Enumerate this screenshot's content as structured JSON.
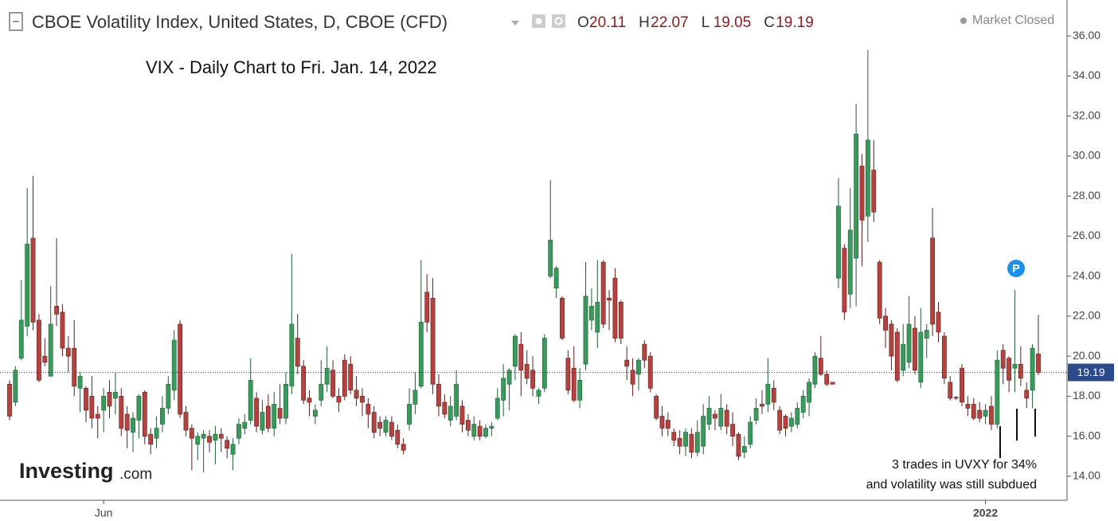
{
  "header": {
    "title": "CBOE Volatility Index, United States, D, CBOE (CFD)",
    "ohlc_letters": [
      "O",
      "H",
      "L",
      "C"
    ],
    "status": "Market Closed"
  },
  "logo": {
    "name": "Investing",
    "suffix": ".com"
  },
  "marker": "P",
  "chart_data": {
    "type": "candlestick",
    "annotation": "VIX - Daily Chart to Fri. Jan. 14, 2022",
    "note": [
      "3 trades in UVXY for 34%",
      "and volatility was still subdued"
    ],
    "up_color": "#3a9a5c",
    "down_color": "#b5423f",
    "price_line_color": "#2b4a8b",
    "ylim": [
      12.8,
      37.6
    ],
    "yticks": [
      {
        "value": 14,
        "label": "14.00"
      },
      {
        "value": 16,
        "label": "16.00"
      },
      {
        "value": 18,
        "label": "18.00"
      },
      {
        "value": 20,
        "label": "20.00"
      },
      {
        "value": 22,
        "label": "22.00"
      },
      {
        "value": 24,
        "label": "24.00"
      },
      {
        "value": 26,
        "label": "26.00"
      },
      {
        "value": 28,
        "label": "28.00"
      },
      {
        "value": 30,
        "label": "30.00"
      },
      {
        "value": 32,
        "label": "32.00"
      },
      {
        "value": 34,
        "label": "34.00"
      },
      {
        "value": 36,
        "label": "36.00"
      }
    ],
    "categories": [
      null,
      null,
      null,
      null,
      null,
      null,
      null,
      null,
      null,
      null,
      null,
      null,
      null,
      null,
      null,
      null,
      "Jun",
      null,
      null,
      null,
      null,
      null,
      null,
      null,
      null,
      null,
      null,
      null,
      null,
      null,
      null,
      null,
      null,
      null,
      null,
      null,
      null,
      null,
      null,
      null,
      null,
      null,
      null,
      null,
      null,
      null,
      null,
      null,
      null,
      null,
      null,
      null,
      null,
      null,
      null,
      null,
      null,
      null,
      null,
      null,
      null,
      null,
      null,
      null,
      null,
      null,
      null,
      null,
      null,
      null,
      null,
      null,
      null,
      null,
      null,
      null,
      null,
      null,
      null,
      null,
      null,
      null,
      null,
      null,
      null,
      null,
      null,
      null,
      null,
      null,
      null,
      null,
      null,
      null,
      null,
      null,
      null,
      null,
      null,
      null,
      null,
      null,
      null,
      null,
      null,
      null,
      null,
      null,
      null,
      null,
      null,
      null,
      null,
      null,
      null,
      null,
      null,
      null,
      null,
      null,
      null,
      null,
      null,
      null,
      null,
      null,
      null,
      null,
      null,
      null,
      null,
      null,
      null,
      null,
      null,
      null,
      null,
      null,
      null,
      null,
      null,
      null,
      null,
      null,
      null,
      null,
      null,
      null,
      null,
      null,
      null,
      null,
      null,
      null,
      null,
      null,
      null,
      null,
      null,
      null,
      null,
      null,
      null,
      null,
      null,
      null,
      "2022",
      null,
      null,
      null,
      null,
      null,
      null,
      null,
      null,
      null
    ],
    "open": [
      18.6,
      17.7,
      19.9,
      21.5,
      25.9,
      21.8,
      20.0,
      19.0,
      22.5,
      22.2,
      20.4,
      20.4,
      18.4,
      18.4,
      18.0,
      17.1,
      17.3,
      18.2,
      17.9,
      18.0,
      17.1,
      16.2,
      16.8,
      18.2,
      16.1,
      15.9,
      16.6,
      17.4,
      18.3,
      21.6,
      17.2,
      16.4,
      15.6,
      15.9,
      16.0,
      15.8,
      16.1,
      15.8,
      15.1,
      15.9,
      16.4,
      16.8,
      17.9,
      16.3,
      17.5,
      16.4,
      17.4,
      16.9,
      18.5,
      20.9,
      19.5,
      17.9,
      17.0,
      17.8,
      18.6,
      19.3,
      18.0,
      19.8,
      19.6,
      18.3,
      18.0,
      17.6,
      17.2,
      16.7,
      16.2,
      16.7,
      16.3,
      15.6,
      16.6,
      17.6,
      18.5,
      23.2,
      22.9,
      18.6,
      17.7,
      16.8,
      17.0,
      17.5,
      16.8,
      16.0,
      16.5,
      16.0,
      16.4,
      16.9,
      17.8,
      18.6,
      19.5,
      20.6,
      19.6,
      19.3,
      18.0,
      18.4,
      24.0,
      23.4,
      22.9,
      19.9,
      19.4,
      17.8,
      19.6,
      21.8,
      21.2,
      24.7,
      22.9,
      23.9,
      22.7,
      19.8,
      19.3,
      19.1,
      20.6,
      20.0,
      18.0,
      17.0,
      16.8,
      16.2,
      15.9,
      15.5,
      16.1,
      15.2,
      15.5,
      16.6,
      17.1,
      16.5,
      17.3,
      16.6,
      16.1,
      15.2,
      15.6,
      16.8,
      17.6,
      17.6,
      18.4,
      17.3,
      17.0,
      16.5,
      16.6,
      17.2,
      17.7,
      18.6,
      19.9,
      19.1,
      18.7,
      23.9,
      25.4,
      23.1,
      24.9,
      29.5,
      27.0,
      29.3,
      24.7,
      22.0,
      21.6,
      21.2,
      19.3,
      19.7,
      21.4,
      18.7,
      20.9,
      25.9,
      22.2,
      21.0,
      18.7,
      17.95,
      19.4,
      17.6,
      17.6,
      17.3,
      17.0,
      17.5,
      16.6,
      20.3,
      19.9,
      19.4,
      19.6,
      18.3,
      18.3,
      20.11
    ],
    "high": [
      18.8,
      19.5,
      23.8,
      28.4,
      29.0,
      22.1,
      20.9,
      23.5,
      25.9,
      22.6,
      21.0,
      21.8,
      19.2,
      18.5,
      19.0,
      17.5,
      18.4,
      18.8,
      19.2,
      18.4,
      17.5,
      17.2,
      18.1,
      18.3,
      16.4,
      17.0,
      18.0,
      19.0,
      21.3,
      21.8,
      17.5,
      16.6,
      16.2,
      16.3,
      16.3,
      16.5,
      16.4,
      16.0,
      15.9,
      16.9,
      17.1,
      19.9,
      18.2,
      17.8,
      18.1,
      18.2,
      18.6,
      19.2,
      25.1,
      22.1,
      19.8,
      18.3,
      17.6,
      19.8,
      20.5,
      19.8,
      18.4,
      20.1,
      20.0,
      19.0,
      18.4,
      17.9,
      17.5,
      17.0,
      17.0,
      17.0,
      16.6,
      15.9,
      18.4,
      19.2,
      24.8,
      24.1,
      23.9,
      19.1,
      18.1,
      18.0,
      19.3,
      17.8,
      17.1,
      17.0,
      16.8,
      16.6,
      16.7,
      18.4,
      19.6,
      19.4,
      21.1,
      21.2,
      20.3,
      20.0,
      18.4,
      21.1,
      28.8,
      24.5,
      23.0,
      20.3,
      20.5,
      19.4,
      24.7,
      23.4,
      24.8,
      24.8,
      23.3,
      24.4,
      22.8,
      20.5,
      19.9,
      19.9,
      20.8,
      20.2,
      18.1,
      17.5,
      17.2,
      16.4,
      16.3,
      16.4,
      16.4,
      16.8,
      17.6,
      18.0,
      17.3,
      18.1,
      17.6,
      17.2,
      16.2,
      16.0,
      17.0,
      17.9,
      18.3,
      19.9,
      18.8,
      17.5,
      17.1,
      17.2,
      17.7,
      18.3,
      18.9,
      20.2,
      21.0,
      19.3,
      18.7,
      28.9,
      25.6,
      28.4,
      32.6,
      30.1,
      35.3,
      30.8,
      24.8,
      22.4,
      21.8,
      21.4,
      21.6,
      23.0,
      22.0,
      22.4,
      21.6,
      27.4,
      22.7,
      21.2,
      19.0,
      18.0,
      19.6,
      18.0,
      17.9,
      17.7,
      17.6,
      18.0,
      20.3,
      20.6,
      20.0,
      23.3,
      20.5,
      18.7,
      20.6,
      22.07
    ],
    "low": [
      16.8,
      17.5,
      19.8,
      21.0,
      21.3,
      18.7,
      19.5,
      19.0,
      21.5,
      20.0,
      19.2,
      18.0,
      17.2,
      16.7,
      16.4,
      15.9,
      16.2,
      16.9,
      17.1,
      16.0,
      15.4,
      15.2,
      15.9,
      15.6,
      15.1,
      15.4,
      16.2,
      17.1,
      17.8,
      16.9,
      16.0,
      14.3,
      14.8,
      14.2,
      15.2,
      14.6,
      15.2,
      14.9,
      14.3,
      15.6,
      16.1,
      16.6,
      16.2,
      16.1,
      16.2,
      16.0,
      16.6,
      16.6,
      18.1,
      19.1,
      17.6,
      17.0,
      16.6,
      17.5,
      18.2,
      17.9,
      17.2,
      17.8,
      18.1,
      17.5,
      17.0,
      16.4,
      15.9,
      16.0,
      16.0,
      15.8,
      15.4,
      15.1,
      16.3,
      17.1,
      18.4,
      21.2,
      18.1,
      17.0,
      16.9,
      16.5,
      16.8,
      16.2,
      16.0,
      15.8,
      15.8,
      15.9,
      16.0,
      16.8,
      17.0,
      17.3,
      18.8,
      18.0,
      18.6,
      18.0,
      17.6,
      18.2,
      23.9,
      22.9,
      20.8,
      18.1,
      17.7,
      17.4,
      19.3,
      21.3,
      20.4,
      21.4,
      21.3,
      20.7,
      20.6,
      18.8,
      18.0,
      18.3,
      19.4,
      18.2,
      16.8,
      16.0,
      16.0,
      15.5,
      15.1,
      15.0,
      14.9,
      15.0,
      15.1,
      16.3,
      16.3,
      16.3,
      16.1,
      15.5,
      14.8,
      14.9,
      15.4,
      16.6,
      17.1,
      17.2,
      17.3,
      16.1,
      16.0,
      16.2,
      16.4,
      16.9,
      17.0,
      18.4,
      19.0,
      18.5,
      18.6,
      23.4,
      21.8,
      22.4,
      22.5,
      24.5,
      25.7,
      26.7,
      21.6,
      20.4,
      19.3,
      18.7,
      19.0,
      19.4,
      19.1,
      18.4,
      19.9,
      21.0,
      20.7,
      18.6,
      17.8,
      17.8,
      17.5,
      17.0,
      16.8,
      16.7,
      16.6,
      16.3,
      16.4,
      18.6,
      18.2,
      18.2,
      18.5,
      17.4,
      17.4,
      19.05
    ],
    "close": [
      17.0,
      19.3,
      21.8,
      25.6,
      21.7,
      18.8,
      19.7,
      21.6,
      22.1,
      20.4,
      20.0,
      18.5,
      19.0,
      17.3,
      16.9,
      16.9,
      18.0,
      17.5,
      18.2,
      16.4,
      16.3,
      16.9,
      18.0,
      16.0,
      15.6,
      16.4,
      17.4,
      18.6,
      20.8,
      17.1,
      16.3,
      15.9,
      16.0,
      16.1,
      15.7,
      16.1,
      15.9,
      15.4,
      15.6,
      16.6,
      16.7,
      18.8,
      16.5,
      17.2,
      16.4,
      17.6,
      16.9,
      18.6,
      21.6,
      19.5,
      17.8,
      17.7,
      17.3,
      18.6,
      19.4,
      18.0,
      17.7,
      18.0,
      18.3,
      17.9,
      17.7,
      17.1,
      16.2,
      16.4,
      16.8,
      16.0,
      15.6,
      15.3,
      17.6,
      18.3,
      21.7,
      21.7,
      18.6,
      17.5,
      17.1,
      17.5,
      18.6,
      16.6,
      16.3,
      16.6,
      16.0,
      16.4,
      16.5,
      17.9,
      18.9,
      19.3,
      21.0,
      19.3,
      18.9,
      18.4,
      18.3,
      20.9,
      25.8,
      24.4,
      20.9,
      18.3,
      17.8,
      18.8,
      23.0,
      22.5,
      22.7,
      21.6,
      22.8,
      20.9,
      20.9,
      19.5,
      18.6,
      19.8,
      19.8,
      18.4,
      16.9,
      16.4,
      16.4,
      15.8,
      15.5,
      16.2,
      15.2,
      16.2,
      17.0,
      17.4,
      16.9,
      17.4,
      16.5,
      16.0,
      15.0,
      15.5,
      16.7,
      17.4,
      17.5,
      18.6,
      17.7,
      16.3,
      16.4,
      16.9,
      17.4,
      18.0,
      18.7,
      20.0,
      19.1,
      18.6,
      18.6,
      27.5,
      22.2,
      26.3,
      31.1,
      26.8,
      30.8,
      27.2,
      21.9,
      21.3,
      20.0,
      18.8,
      20.6,
      21.6,
      19.3,
      21.2,
      21.3,
      21.6,
      21.2,
      18.9,
      17.9,
      17.9,
      17.7,
      17.4,
      16.9,
      16.9,
      17.3,
      16.6,
      19.8,
      19.4,
      18.8,
      19.6,
      18.9,
      17.9,
      20.4,
      19.19
    ]
  }
}
